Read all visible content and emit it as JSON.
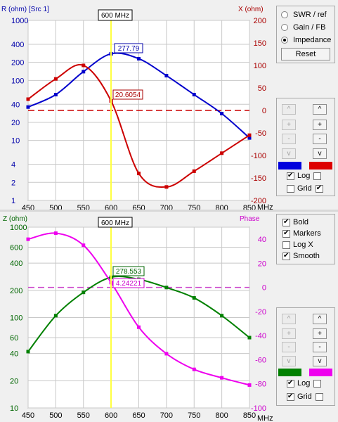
{
  "top_chart": {
    "left_axis_title": "R (ohm) [Src 1]",
    "right_axis_title": "X (ohm)",
    "cursor_label": "600 MHz",
    "value_r": "277.79",
    "value_x": "20.6054",
    "left_ticks": [
      "1000",
      "400",
      "200",
      "100",
      "40",
      "20",
      "10",
      "4",
      "2",
      "1"
    ],
    "right_ticks": [
      "200",
      "150",
      "100",
      "50",
      "0",
      "-50",
      "-100",
      "-150",
      "-200"
    ],
    "x_ticks": [
      "450",
      "500",
      "550",
      "600",
      "650",
      "700",
      "750",
      "800",
      "850"
    ],
    "x_unit": "MHz"
  },
  "bottom_chart": {
    "left_axis_title": "Z (ohm)",
    "right_axis_title": "Phase",
    "cursor_label": "600 MHz",
    "value_z": "278.553",
    "value_phase": "4.24221",
    "left_ticks": [
      "1000",
      "600",
      "400",
      "200",
      "100",
      "60",
      "40",
      "20",
      "10"
    ],
    "right_ticks": [
      "40",
      "20",
      "0",
      "-20",
      "-40",
      "-60",
      "-80",
      "-100"
    ],
    "x_ticks": [
      "450",
      "500",
      "550",
      "600",
      "650",
      "700",
      "750",
      "800",
      "850"
    ],
    "x_unit": "MHz"
  },
  "mode_panel": {
    "options": [
      "SWR / ref",
      "Gain / FB",
      "Impedance"
    ],
    "selected": "Impedance",
    "reset_label": "Reset"
  },
  "scale_panel_top": {
    "buttons": [
      "^",
      "^",
      "+",
      "+",
      "-",
      "-",
      "v",
      "v"
    ],
    "left_color": "#0000dd",
    "right_color": "#dd0000",
    "log_label": "Log",
    "grid_label": "Grid",
    "log_left": true,
    "log_right": false,
    "grid_left": false,
    "grid_right": true
  },
  "display_panel": {
    "options": [
      {
        "label": "Bold",
        "checked": true
      },
      {
        "label": "Markers",
        "checked": true
      },
      {
        "label": "Log X",
        "checked": false
      },
      {
        "label": "Smooth",
        "checked": true
      }
    ]
  },
  "scale_panel_bottom": {
    "buttons": [
      "^",
      "^",
      "+",
      "+",
      "-",
      "-",
      "v",
      "v"
    ],
    "left_color": "#008000",
    "right_color": "#ee00ee",
    "log_label": "Log",
    "grid_label": "Grid",
    "log_left": true,
    "log_right": false,
    "grid_left": true,
    "grid_right": false
  },
  "chart_data": [
    {
      "type": "line",
      "x": [
        450,
        500,
        550,
        600,
        650,
        700,
        750,
        800,
        850
      ],
      "x_unit": "MHz",
      "series": [
        {
          "name": "R (ohm)",
          "axis": "left",
          "scale": "log",
          "color": "#0000cc",
          "values": [
            36,
            58,
            140,
            278,
            230,
            120,
            58,
            28,
            11
          ]
        },
        {
          "name": "X (ohm)",
          "axis": "right",
          "scale": "linear",
          "color": "#cc0000",
          "values": [
            25,
            70,
            100,
            21,
            -140,
            -170,
            -135,
            -95,
            -55
          ]
        }
      ],
      "left_range": [
        1,
        1000
      ],
      "right_range": [
        -200,
        200
      ],
      "cursor_x": 600,
      "grid": true
    },
    {
      "type": "line",
      "x": [
        450,
        500,
        550,
        600,
        650,
        700,
        750,
        800,
        850
      ],
      "x_unit": "MHz",
      "series": [
        {
          "name": "Z (ohm)",
          "axis": "left",
          "scale": "log",
          "color": "#008000",
          "values": [
            42,
            105,
            190,
            279,
            265,
            215,
            165,
            105,
            60
          ]
        },
        {
          "name": "Phase",
          "axis": "right",
          "scale": "linear",
          "color": "#ee00ee",
          "values": [
            40,
            45,
            35,
            4,
            -33,
            -55,
            -68,
            -75,
            -81
          ]
        }
      ],
      "left_range": [
        10,
        1000
      ],
      "right_range": [
        -100,
        50
      ],
      "cursor_x": 600,
      "grid": true
    }
  ]
}
